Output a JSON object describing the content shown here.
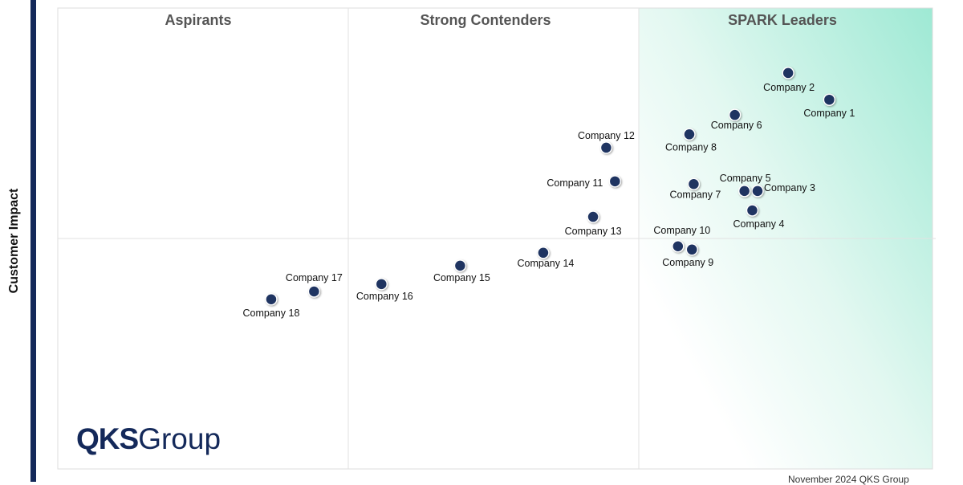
{
  "chart_data": {
    "type": "scatter",
    "title": "",
    "ylabel": "Customer Impact",
    "xlabel": "",
    "xlim": [
      0,
      100
    ],
    "ylim": [
      0,
      100
    ],
    "grid": false,
    "quadrants": [
      "Aspirants",
      "Strong Contenders",
      "SPARK Leaders"
    ],
    "accent_color": "#9ee9d4",
    "point_color": "#1f3461",
    "points": [
      {
        "name": "Company 1",
        "x": 88.2,
        "y": 80.1
      },
      {
        "name": "Company 2",
        "x": 83.5,
        "y": 85.9
      },
      {
        "name": "Company 3",
        "x": 80.0,
        "y": 60.3
      },
      {
        "name": "Company 4",
        "x": 79.4,
        "y": 56.1
      },
      {
        "name": "Company 5",
        "x": 78.5,
        "y": 60.3
      },
      {
        "name": "Company 6",
        "x": 77.4,
        "y": 76.8
      },
      {
        "name": "Company 7",
        "x": 72.7,
        "y": 61.8
      },
      {
        "name": "Company 8",
        "x": 72.2,
        "y": 72.6
      },
      {
        "name": "Company 9",
        "x": 72.5,
        "y": 47.6
      },
      {
        "name": "Company 10",
        "x": 70.9,
        "y": 48.3
      },
      {
        "name": "Company 11",
        "x": 63.7,
        "y": 62.4
      },
      {
        "name": "Company 12",
        "x": 62.7,
        "y": 69.7
      },
      {
        "name": "Company 13",
        "x": 61.2,
        "y": 54.7
      },
      {
        "name": "Company 14",
        "x": 55.5,
        "y": 46.9
      },
      {
        "name": "Company 15",
        "x": 46.0,
        "y": 44.1
      },
      {
        "name": "Company 16",
        "x": 37.0,
        "y": 40.1
      },
      {
        "name": "Company 17",
        "x": 29.3,
        "y": 38.5
      },
      {
        "name": "Company 18",
        "x": 24.4,
        "y": 36.8
      }
    ]
  },
  "logo": {
    "bold": "QKS",
    "light": "Group"
  },
  "footer": "November 2024 QKS Group"
}
